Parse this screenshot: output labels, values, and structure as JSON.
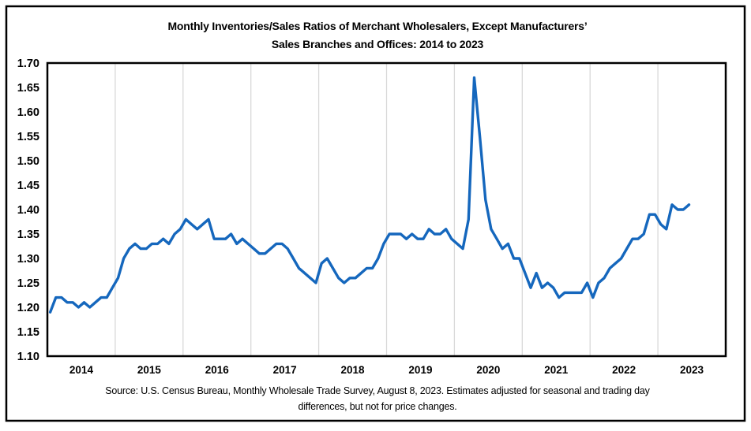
{
  "figure": {
    "title_line1": "Monthly Inventories/Sales Ratios of Merchant Wholesalers, Except Manufacturers’",
    "title_line2": "Sales Branches and Offices: 2014 to 2023",
    "source_line1": "Source: U.S. Census Bureau, Monthly Wholesale Trade Survey, August 8, 2023. Estimates adjusted for seasonal and trading day",
    "source_line2": "differences, but not for price changes."
  },
  "colors": {
    "line": "#1567BD",
    "grid": "#D9D9D9",
    "plot_border": "#000000",
    "figure_border": "#000000",
    "text": "#000000"
  },
  "chart_data": {
    "type": "line",
    "title": "Monthly Inventories/Sales Ratios of Merchant Wholesalers, Except Manufacturers’ Sales Branches and Offices: 2014 to 2023",
    "xlabel": "",
    "ylabel": "",
    "frequency": "monthly",
    "x_start": "2014-01",
    "x_end": "2023-06",
    "x_tick_labels": [
      "2014",
      "2015",
      "2016",
      "2017",
      "2018",
      "2019",
      "2020",
      "2021",
      "2022",
      "2023"
    ],
    "y_ticks": [
      1.1,
      1.15,
      1.2,
      1.25,
      1.3,
      1.35,
      1.4,
      1.45,
      1.5,
      1.55,
      1.6,
      1.65,
      1.7
    ],
    "ylim": [
      1.1,
      1.7
    ],
    "grid": "vertical-yearly-gridlines",
    "legend": "none",
    "series": [
      {
        "name": "Inventories/Sales Ratio",
        "values": [
          1.19,
          1.22,
          1.22,
          1.21,
          1.21,
          1.2,
          1.21,
          1.2,
          1.21,
          1.22,
          1.22,
          1.24,
          1.26,
          1.3,
          1.32,
          1.33,
          1.32,
          1.32,
          1.33,
          1.33,
          1.34,
          1.33,
          1.35,
          1.36,
          1.38,
          1.37,
          1.36,
          1.37,
          1.38,
          1.34,
          1.34,
          1.34,
          1.35,
          1.33,
          1.34,
          1.33,
          1.32,
          1.31,
          1.31,
          1.32,
          1.33,
          1.33,
          1.32,
          1.3,
          1.28,
          1.27,
          1.26,
          1.25,
          1.29,
          1.3,
          1.28,
          1.26,
          1.25,
          1.26,
          1.26,
          1.27,
          1.28,
          1.28,
          1.3,
          1.33,
          1.35,
          1.35,
          1.35,
          1.34,
          1.35,
          1.34,
          1.34,
          1.36,
          1.35,
          1.35,
          1.36,
          1.34,
          1.33,
          1.32,
          1.38,
          1.67,
          1.55,
          1.42,
          1.36,
          1.34,
          1.32,
          1.33,
          1.3,
          1.3,
          1.27,
          1.24,
          1.27,
          1.24,
          1.25,
          1.24,
          1.22,
          1.23,
          1.23,
          1.23,
          1.23,
          1.25,
          1.22,
          1.25,
          1.26,
          1.28,
          1.29,
          1.3,
          1.32,
          1.34,
          1.34,
          1.35,
          1.39,
          1.39,
          1.37,
          1.36,
          1.41,
          1.4,
          1.4,
          1.41
        ]
      }
    ]
  }
}
